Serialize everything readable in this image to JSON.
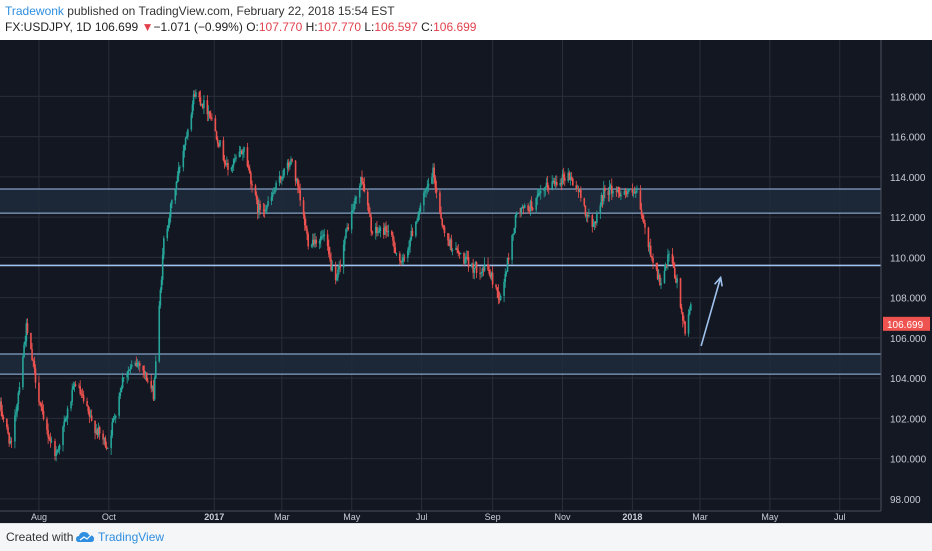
{
  "header": {
    "author": "Tradewonk",
    "published_text": "published on TradingView.com, February 22, 2018 15:54 EST",
    "symbol": "FX:USDJPY, 1D",
    "last": "106.699",
    "down_arrow": "▼",
    "change": "−1.071 (−0.99%)",
    "o_label": "O:",
    "o_value": "107.770",
    "h_label": "H:",
    "h_value": "107.770",
    "l_label": "L:",
    "l_value": "106.597",
    "c_label": "C:",
    "c_value": "106.699"
  },
  "footer": {
    "created_with": "Created with",
    "brand": "TradingView",
    "logo_icon": "tradingview-cloud-icon"
  },
  "colors": {
    "background": "#141823",
    "grid": "#2a2e39",
    "up": "#26a69a",
    "down": "#ef5350",
    "level_line": "#9fc2ec",
    "zone_fill": "#1f2b3b",
    "arrow": "#9fc2ec",
    "price_tag": "#ef5350"
  },
  "chart_data": {
    "type": "candlestick",
    "symbol": "USDJPY",
    "interval": "1D",
    "y_ticks": [
      "98.000",
      "100.000",
      "102.000",
      "104.000",
      "106.000",
      "108.000",
      "110.000",
      "112.000",
      "114.000",
      "116.000",
      "118.000"
    ],
    "ylim": [
      97.4,
      120.8
    ],
    "x_labels": [
      "Aug",
      "Oct",
      "2017",
      "Mar",
      "May",
      "Jul",
      "Sep",
      "Nov",
      "2018",
      "Mar",
      "May",
      "Jul"
    ],
    "x_range": [
      "2016-06-28",
      "2018-08-06"
    ],
    "last_price_label": "106.699",
    "zones": [
      {
        "low": 112.2,
        "high": 113.4
      },
      {
        "low": 104.2,
        "high": 105.2
      }
    ],
    "levels": [
      109.6
    ],
    "arrow": {
      "from": [
        "2018-03-02",
        105.6
      ],
      "to": [
        "2018-03-19",
        109.0
      ]
    },
    "anchors": [
      [
        "2016-06-28",
        102.6
      ],
      [
        "2016-07-08",
        100.6
      ],
      [
        "2016-07-21",
        106.5
      ],
      [
        "2016-08-05",
        101.8
      ],
      [
        "2016-08-16",
        100.2
      ],
      [
        "2016-09-02",
        103.8
      ],
      [
        "2016-09-16",
        101.8
      ],
      [
        "2016-09-30",
        100.6
      ],
      [
        "2016-10-14",
        104.2
      ],
      [
        "2016-10-28",
        104.8
      ],
      [
        "2016-11-09",
        103.2
      ],
      [
        "2016-11-18",
        110.8
      ],
      [
        "2016-12-01",
        114.3
      ],
      [
        "2016-12-15",
        118.2
      ],
      [
        "2016-12-28",
        117.2
      ],
      [
        "2017-01-13",
        114.3
      ],
      [
        "2017-01-27",
        115.4
      ],
      [
        "2017-02-08",
        112.4
      ],
      [
        "2017-02-17",
        112.6
      ],
      [
        "2017-03-02",
        114.2
      ],
      [
        "2017-03-10",
        114.8
      ],
      [
        "2017-03-24",
        110.8
      ],
      [
        "2017-04-07",
        111.0
      ],
      [
        "2017-04-17",
        108.6
      ],
      [
        "2017-04-26",
        111.2
      ],
      [
        "2017-05-10",
        114.0
      ],
      [
        "2017-05-19",
        111.2
      ],
      [
        "2017-06-01",
        111.4
      ],
      [
        "2017-06-14",
        109.6
      ],
      [
        "2017-06-28",
        112.2
      ],
      [
        "2017-07-11",
        114.2
      ],
      [
        "2017-07-21",
        111.1
      ],
      [
        "2017-07-31",
        110.3
      ],
      [
        "2017-08-14",
        109.5
      ],
      [
        "2017-08-28",
        109.4
      ],
      [
        "2017-09-08",
        107.9
      ],
      [
        "2017-09-22",
        112.2
      ],
      [
        "2017-10-06",
        112.6
      ],
      [
        "2017-10-20",
        113.6
      ],
      [
        "2017-11-06",
        114.1
      ],
      [
        "2017-11-15",
        113.3
      ],
      [
        "2017-11-27",
        111.4
      ],
      [
        "2017-12-08",
        113.4
      ],
      [
        "2017-12-20",
        113.3
      ],
      [
        "2018-01-05",
        113.1
      ],
      [
        "2018-01-15",
        110.6
      ],
      [
        "2018-01-26",
        108.6
      ],
      [
        "2018-02-02",
        110.1
      ],
      [
        "2018-02-09",
        108.7
      ],
      [
        "2018-02-16",
        106.2
      ],
      [
        "2018-02-21",
        107.8
      ],
      [
        "2018-02-22",
        106.7
      ]
    ]
  }
}
